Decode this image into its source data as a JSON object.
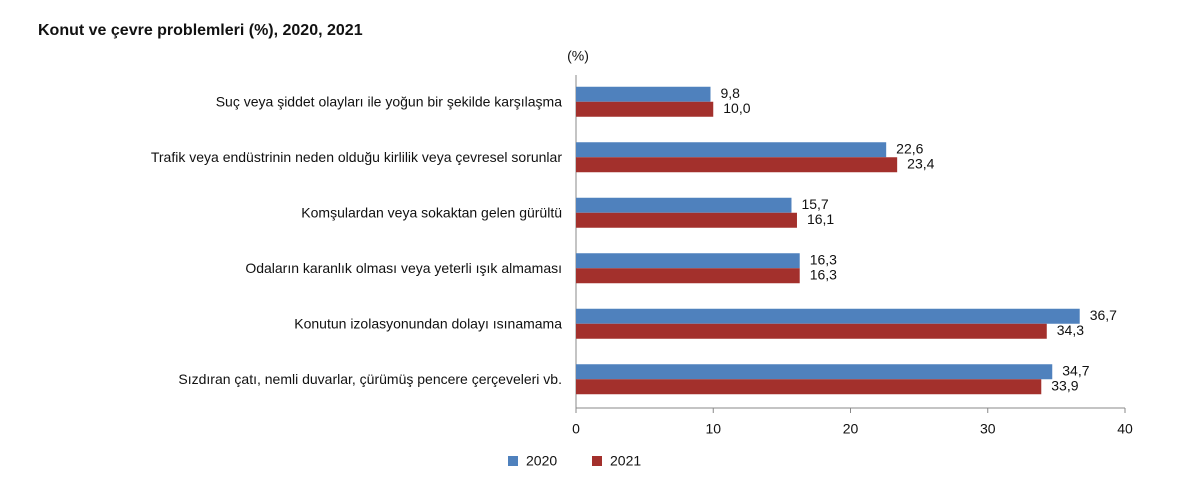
{
  "chart_data": {
    "type": "hbar",
    "title": "Konut ve çevre problemleri (%), 2020, 2021",
    "axis_label": "(%)",
    "categories": [
      "Suç veya şiddet olayları ile yoğun bir şekilde karşılaşma",
      "Trafik veya endüstrinin neden olduğu kirlilik veya çevresel sorunlar",
      "Komşulardan veya sokaktan gelen gürültü",
      "Odaların karanlık olması veya yeterli ışık almaması",
      "Konutun izolasyonundan dolayı ısınamama",
      "Sızdıran çatı, nemli duvarlar, çürümüş pencere çerçeveleri vb."
    ],
    "series": [
      {
        "name": "2020",
        "color": "#4f81bd",
        "values": [
          9.8,
          22.6,
          15.7,
          16.3,
          36.7,
          34.7
        ],
        "value_labels": [
          "9,8",
          "22,6",
          "15,7",
          "16,3",
          "36,7",
          "34,7"
        ]
      },
      {
        "name": "2021",
        "color": "#a3302c",
        "values": [
          10.0,
          23.4,
          16.1,
          16.3,
          34.3,
          33.9
        ],
        "value_labels": [
          "10,0",
          "23,4",
          "16,1",
          "16,3",
          "34,3",
          "33,9"
        ]
      }
    ],
    "xlim": [
      0,
      40
    ],
    "xticks": [
      0,
      10,
      20,
      30,
      40
    ]
  }
}
